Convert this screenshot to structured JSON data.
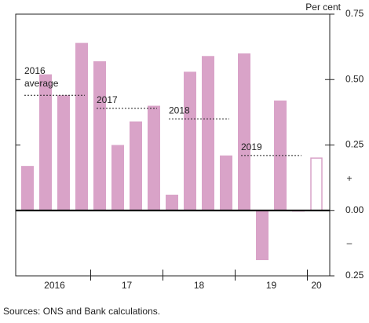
{
  "chart_data": {
    "type": "bar",
    "unit_label": "Per cent",
    "year_labels": [
      "2016",
      "17",
      "18",
      "19",
      "20"
    ],
    "values": [
      0.17,
      0.52,
      0.44,
      0.64,
      0.57,
      0.25,
      0.34,
      0.4,
      0.06,
      0.53,
      0.59,
      0.21,
      0.6,
      -0.19,
      0.42,
      0.0,
      0.2
    ],
    "color": "#d9a3c8",
    "outline_last": true,
    "averages": [
      {
        "label": "2016 average",
        "value": 0.44
      },
      {
        "label": "2017",
        "value": 0.39
      },
      {
        "label": "2018",
        "value": 0.35
      },
      {
        "label": "2019",
        "value": 0.21
      }
    ],
    "ylim": [
      -0.25,
      0.75
    ],
    "yticks": [
      {
        "value": -0.25,
        "label": "0.25"
      },
      0.25,
      {
        "value": 0,
        "label": "0.00"
      },
      {
        "value": 0.5,
        "label": "0.50"
      },
      0.75
    ],
    "sign_labels": [
      "+",
      "–"
    ],
    "source": "Sources: ONS and Bank calculations."
  }
}
